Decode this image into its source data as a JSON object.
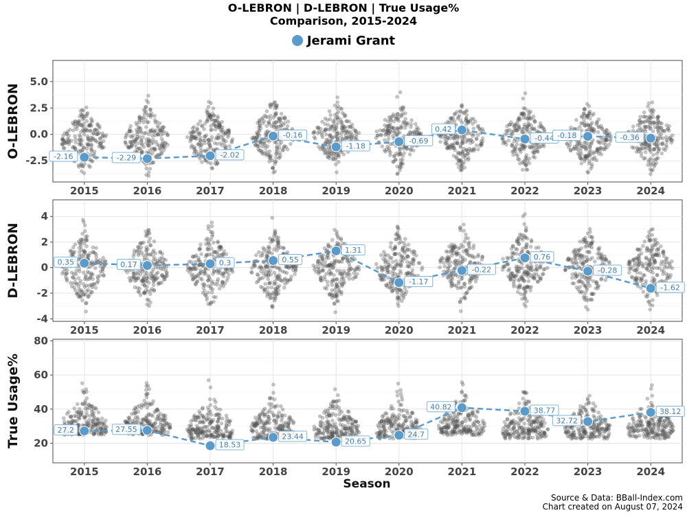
{
  "title_line1": "O-LEBRON | D-LEBRON | True Usage%",
  "title_line2": "Comparison, 2015-2024",
  "legend_label": "Jerami Grant",
  "source_line": "Source & Data: BBall-Index.com",
  "created_line": "Chart created on August 07, 2024",
  "colors": {
    "player": "#5b9bcb",
    "background_dots": "#555555",
    "label_border": "#7fb3d8",
    "label_text": "#4a7fa8"
  },
  "chart_data": {
    "type": "scatter",
    "xlabel": "Season",
    "x": [
      2015,
      2016,
      2017,
      2018,
      2019,
      2020,
      2021,
      2022,
      2023,
      2024
    ],
    "panels": [
      {
        "ylabel": "O-LEBRON",
        "ylim": [
          -4.5,
          7
        ],
        "yticks": [
          "-2.5",
          "0.0",
          "2.5",
          "5.0"
        ],
        "series": [
          {
            "name": "Jerami Grant",
            "values": [
              -2.16,
              -2.29,
              -2.02,
              -0.16,
              -1.18,
              -0.69,
              0.42,
              -0.44,
              -0.18,
              -0.36
            ]
          }
        ],
        "value_labels": [
          "-2.16",
          "-2.29",
          "-2.02",
          "-0.16",
          "-1.18",
          "-0.69",
          "0.42",
          "-0.44",
          "-0.18",
          "-0.36"
        ]
      },
      {
        "ylabel": "D-LEBRON",
        "ylim": [
          -4.2,
          5.3
        ],
        "yticks": [
          "-4",
          "-2",
          "0",
          "2",
          "4"
        ],
        "series": [
          {
            "name": "Jerami Grant",
            "values": [
              0.35,
              0.17,
              0.3,
              0.55,
              1.31,
              -1.17,
              -0.22,
              0.76,
              -0.28,
              -1.62
            ]
          }
        ],
        "value_labels": [
          "0.35",
          "0.17",
          "0.3",
          "0.55",
          "1.31",
          "-1.17",
          "-0.22",
          "0.76",
          "-0.28",
          "-1.62"
        ]
      },
      {
        "ylabel": "True Usage%",
        "ylim": [
          8.5,
          81
        ],
        "yticks": [
          "20",
          "40",
          "60",
          "80"
        ],
        "series": [
          {
            "name": "Jerami Grant",
            "values": [
              27.2,
              27.55,
              18.53,
              23.44,
              20.65,
              24.7,
              40.82,
              38.77,
              32.72,
              38.12
            ]
          }
        ],
        "value_labels": [
          "27.2",
          "27.55",
          "18.53",
          "23.44",
          "20.65",
          "24.7",
          "40.82",
          "38.77",
          "32.72",
          "38.12"
        ]
      }
    ],
    "grid": true,
    "legend_position": "top-center"
  }
}
